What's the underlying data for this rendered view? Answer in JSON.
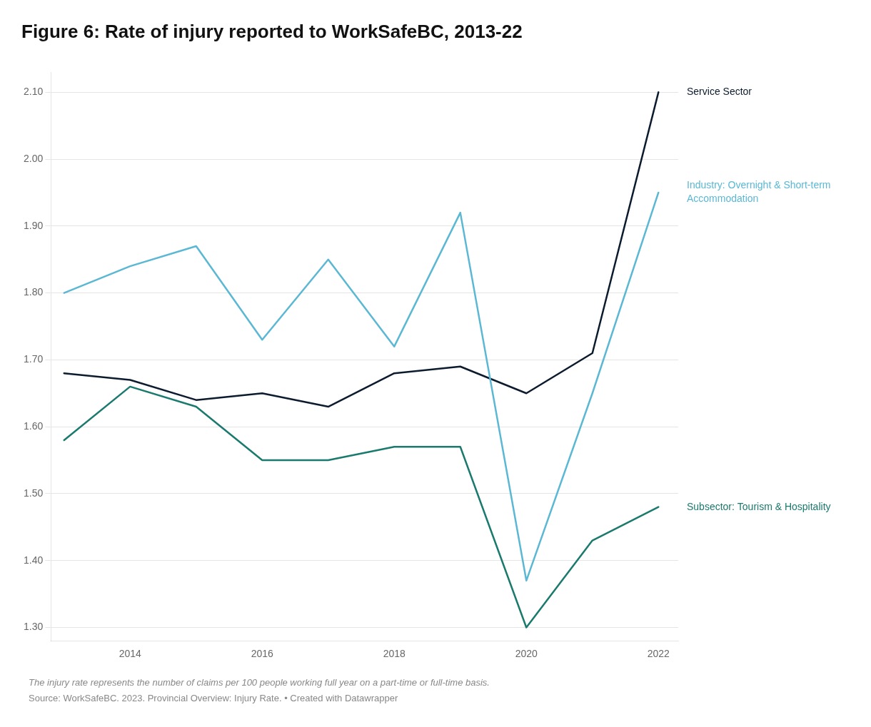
{
  "chart_data": {
    "type": "line",
    "title": "Figure 6: Rate of injury reported to WorkSafeBC, 2013-22",
    "x": [
      2013,
      2014,
      2015,
      2016,
      2017,
      2018,
      2019,
      2020,
      2021,
      2022
    ],
    "series": [
      {
        "name": "Industry: Overnight & Short-term\nAccommodation",
        "color": "#5bb8d4",
        "values": [
          1.8,
          1.84,
          1.87,
          1.73,
          1.85,
          1.72,
          1.92,
          1.37,
          1.65,
          1.95
        ]
      },
      {
        "name": "Service Sector",
        "color": "#0d1b2e",
        "values": [
          1.68,
          1.67,
          1.64,
          1.65,
          1.63,
          1.68,
          1.69,
          1.65,
          1.71,
          2.1
        ]
      },
      {
        "name": "Subsector: Tourism & Hospitality",
        "color": "#1a7a6e",
        "values": [
          1.58,
          1.66,
          1.63,
          1.55,
          1.55,
          1.57,
          1.57,
          1.3,
          1.43,
          1.48
        ]
      }
    ],
    "xlim": [
      2012.8,
      2022.3
    ],
    "xticks": [
      2014,
      2016,
      2018,
      2020,
      2022
    ],
    "ylim": [
      1.28,
      2.13
    ],
    "yticks": [
      {
        "value": 1.3,
        "label": "1.30"
      },
      {
        "value": 1.4,
        "label": "1.40"
      },
      {
        "value": 1.5,
        "label": "1.50"
      },
      {
        "value": 1.6,
        "label": "1.60"
      },
      {
        "value": 1.7,
        "label": "1.70"
      },
      {
        "value": 1.8,
        "label": "1.80"
      },
      {
        "value": 1.9,
        "label": "1.90"
      },
      {
        "value": 2.0,
        "label": "2.00"
      },
      {
        "value": 2.1,
        "label": "2.10"
      }
    ],
    "grid": true,
    "annotations": [
      "The injury rate represents the number of claims per 100 people working full year on a part-time or full-time basis.",
      "Source: WorkSafeBC. 2023. Provincial Overview: Injury Rate. • Created with Datawrapper"
    ]
  }
}
